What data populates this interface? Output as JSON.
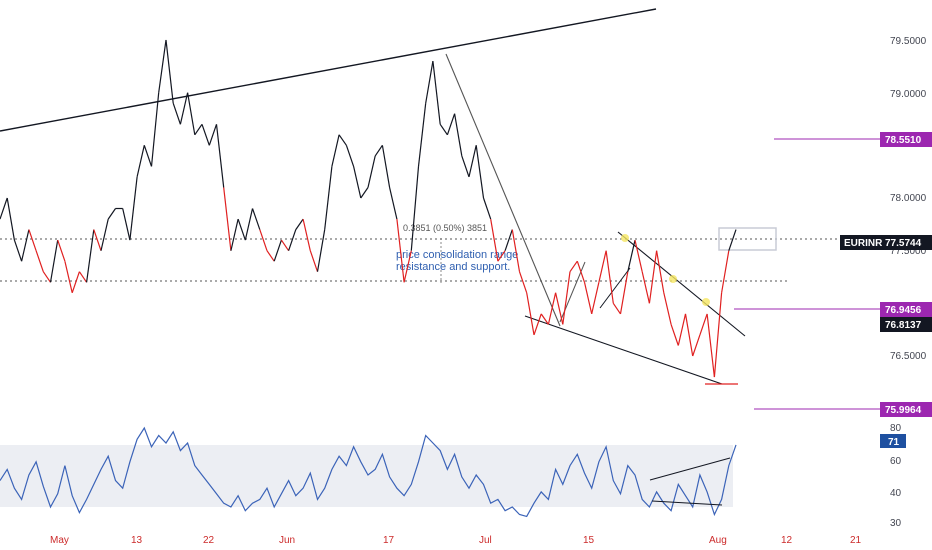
{
  "chart_data": [
    {
      "type": "line",
      "symbol": "EURINR",
      "x_ticks": [
        "May",
        "13",
        "22",
        "Jun",
        "17",
        "Jul",
        "15",
        "Aug",
        "12",
        "21"
      ],
      "ylim": [
        76.0,
        79.75
      ],
      "y_ticks": [
        "79.5000",
        "79.0000",
        "78.0000",
        "77.5000",
        "76.5000"
      ],
      "price_badges": [
        {
          "label": "78.5510",
          "color": "#9c27b0",
          "value": 78.551
        },
        {
          "label": "EURINR",
          "color": "#131722",
          "value": 77.5744
        },
        {
          "label": "77.5744",
          "color": "#131722",
          "value": 77.5744
        },
        {
          "label": "76.9456",
          "color": "#9c27b0",
          "value": 76.9456
        },
        {
          "label": "76.8137",
          "color": "#131722",
          "value": 76.8137
        },
        {
          "label": "75.9964",
          "color": "#9c27b0",
          "value": 75.9964
        }
      ],
      "annotation": [
        "price consolidation range",
        "resistance and support."
      ],
      "measure_label": "0.3851 (0.50%) 3851",
      "series": [
        {
          "values": [
            77.8,
            78.0,
            77.6,
            77.4,
            77.7,
            77.5,
            77.3,
            77.2,
            77.6,
            77.4,
            77.1,
            77.3,
            77.2,
            77.7,
            77.5,
            77.8,
            77.9,
            77.9,
            77.6,
            78.2,
            78.5,
            78.3,
            79.0,
            79.5,
            78.9,
            78.7,
            79.0,
            78.6,
            78.7,
            78.5,
            78.7,
            78.1,
            77.5,
            77.8,
            77.6,
            77.9,
            77.7,
            77.5,
            77.4,
            77.6,
            77.5,
            77.7,
            77.8,
            77.5,
            77.3,
            77.7,
            78.3,
            78.6,
            78.5,
            78.3,
            78.0,
            78.1,
            78.4,
            78.5,
            78.1,
            77.8,
            77.2,
            77.5,
            78.3,
            78.9,
            79.3,
            78.7,
            78.6,
            78.8,
            78.4,
            78.2,
            78.5,
            78.0,
            77.8,
            77.4,
            77.5,
            77.7,
            77.3,
            77.1,
            76.7,
            76.9,
            76.8,
            77.1,
            76.8,
            77.3,
            77.4,
            77.2,
            76.9,
            77.2,
            77.5,
            77.0,
            76.9,
            77.3,
            77.6,
            77.3,
            77.0,
            77.5,
            77.1,
            76.8,
            76.6,
            76.9,
            76.5,
            76.7,
            76.9,
            76.3,
            77.1,
            77.5,
            77.7
          ]
        },
        {
          "type": "line",
          "ylim": [
            30,
            80
          ],
          "y_ticks": [
            "80",
            "60",
            "40",
            "30"
          ],
          "current_label": "71",
          "values": [
            52,
            58,
            48,
            42,
            55,
            62,
            49,
            38,
            45,
            60,
            44,
            35,
            42,
            50,
            58,
            65,
            52,
            48,
            62,
            74,
            80,
            70,
            76,
            72,
            78,
            68,
            72,
            60,
            55,
            50,
            45,
            40,
            38,
            44,
            36,
            40,
            42,
            48,
            38,
            45,
            52,
            44,
            48,
            56,
            42,
            48,
            58,
            65,
            60,
            70,
            62,
            55,
            58,
            66,
            54,
            48,
            44,
            50,
            62,
            76,
            72,
            68,
            58,
            66,
            54,
            48,
            55,
            50,
            40,
            42,
            36,
            38,
            34,
            33,
            40,
            46,
            42,
            58,
            50,
            60,
            66,
            56,
            48,
            62,
            70,
            52,
            45,
            60,
            55,
            42,
            38,
            46,
            40,
            36,
            50,
            44,
            38,
            55,
            46,
            34,
            42,
            60,
            71
          ]
        }
      ]
    }
  ]
}
